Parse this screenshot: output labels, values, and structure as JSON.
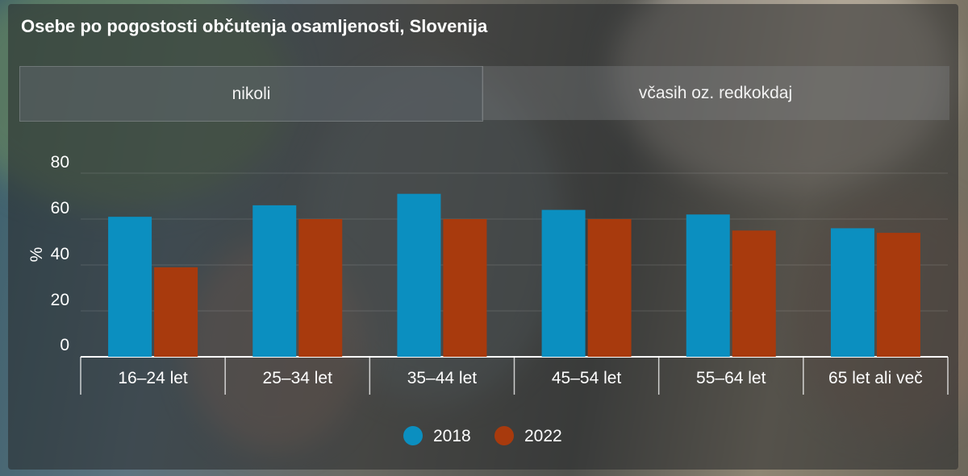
{
  "title": "Osebe po pogostosti občutenja osamljenosti, Slovenija",
  "tabs": [
    {
      "label": "nikoli",
      "active": true
    },
    {
      "label": "včasih oz. redkokdaj",
      "active": false
    }
  ],
  "chart_data": {
    "type": "bar",
    "categories": [
      "16–24 let",
      "25–34 let",
      "35–44 let",
      "45–54 let",
      "55–64 let",
      "65 let ali več"
    ],
    "series": [
      {
        "name": "2018",
        "color": "#0b8fc0",
        "values": [
          61,
          66,
          71,
          64,
          62,
          56
        ]
      },
      {
        "name": "2022",
        "color": "#a83a0d",
        "values": [
          39,
          60,
          60,
          60,
          55,
          54
        ]
      }
    ],
    "yticks": [
      0,
      20,
      40,
      60,
      80
    ],
    "ylabel": "%",
    "ylim": [
      0,
      85
    ],
    "legend_position": "bottom-center",
    "grid": true
  }
}
